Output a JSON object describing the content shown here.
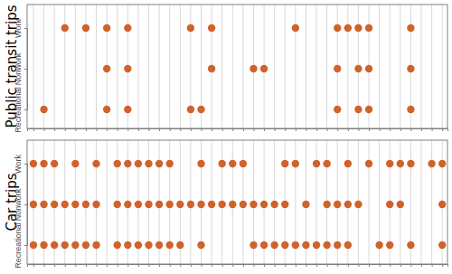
{
  "chart_data": [
    {
      "type": "scatter",
      "y_label": "Public transit trips",
      "xlim": [
        0.4,
        40.5
      ],
      "xticks": [
        1,
        2,
        3,
        4,
        5,
        6,
        7,
        8,
        9,
        10,
        11,
        12,
        13,
        14,
        15,
        16,
        17,
        18,
        19,
        20,
        21,
        22,
        23,
        24,
        25,
        26,
        27,
        28,
        29,
        30,
        31,
        32,
        33,
        34,
        35,
        36,
        37,
        38,
        39,
        40
      ],
      "tick_labels": "y",
      "grid": true,
      "color": "#d0622b",
      "marker": "circle",
      "series": [
        {
          "name": "Work",
          "x": [
            4,
            6,
            8,
            10,
            16,
            18,
            26,
            30,
            31,
            32,
            33,
            37
          ]
        },
        {
          "name": "Nonwork",
          "x": [
            8,
            10,
            18,
            22,
            23,
            30,
            32,
            33,
            37
          ]
        },
        {
          "name": "Recreational",
          "x": [
            2,
            8,
            10,
            16,
            17,
            30,
            32,
            33,
            37
          ]
        }
      ]
    },
    {
      "type": "scatter",
      "y_label": "Car trips",
      "xlim": [
        0.4,
        40.5
      ],
      "xticks": [
        1,
        2,
        3,
        4,
        5,
        6,
        7,
        8,
        9,
        10,
        11,
        12,
        13,
        14,
        15,
        16,
        17,
        18,
        19,
        20,
        21,
        22,
        23,
        24,
        25,
        26,
        27,
        28,
        29,
        30,
        31,
        32,
        33,
        34,
        35,
        36,
        37,
        38,
        39,
        40
      ],
      "tick_labels": "y",
      "grid": true,
      "color": "#d0622b",
      "marker": "circle",
      "series": [
        {
          "name": "Work",
          "x": [
            1,
            2,
            3,
            5,
            7,
            9,
            10,
            11,
            12,
            13,
            14,
            17,
            19,
            20,
            21,
            25,
            26,
            28,
            29,
            31,
            33,
            35,
            36,
            37,
            39,
            40
          ]
        },
        {
          "name": "Nonwork",
          "x": [
            1,
            2,
            3,
            4,
            5,
            6,
            7,
            9,
            10,
            11,
            12,
            13,
            14,
            15,
            16,
            17,
            18,
            19,
            20,
            21,
            22,
            23,
            24,
            25,
            27,
            29,
            30,
            31,
            32,
            35,
            36,
            40
          ]
        },
        {
          "name": "Recreational",
          "x": [
            1,
            2,
            3,
            4,
            5,
            6,
            7,
            9,
            10,
            11,
            12,
            13,
            14,
            15,
            17,
            22,
            23,
            24,
            25,
            26,
            27,
            28,
            29,
            30,
            31,
            34,
            35,
            37,
            40
          ]
        }
      ]
    }
  ]
}
